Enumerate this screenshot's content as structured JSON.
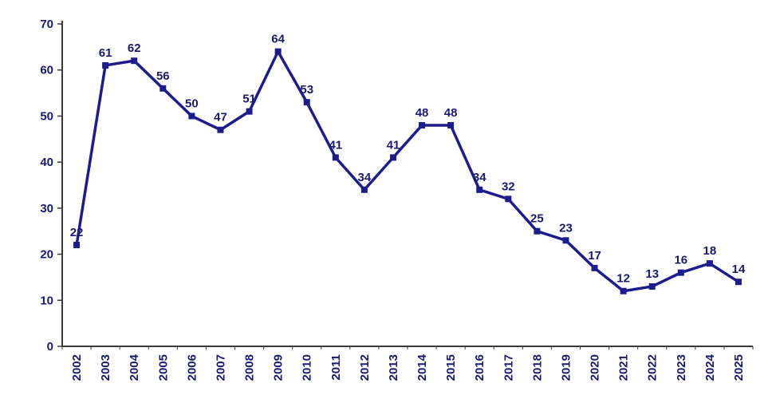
{
  "chart_data": {
    "type": "line",
    "categories": [
      "2002",
      "2003",
      "2004",
      "2005",
      "2006",
      "2007",
      "2008",
      "2009",
      "2010",
      "2011",
      "2012",
      "2013",
      "2014",
      "2015",
      "2016",
      "2017",
      "2018",
      "2019",
      "2020",
      "2021",
      "2022",
      "2023",
      "2024",
      "2025"
    ],
    "values": [
      22,
      61,
      62,
      56,
      50,
      47,
      51,
      64,
      53,
      41,
      34,
      41,
      48,
      48,
      34,
      32,
      25,
      23,
      17,
      12,
      13,
      16,
      18,
      14
    ],
    "title": "",
    "xlabel": "",
    "ylabel": "",
    "ylim": [
      0,
      70
    ],
    "ytick_step": 10,
    "grid": false,
    "legend": "none",
    "marker": "square",
    "line_color": "#1c1c8e",
    "label_color": "#191970",
    "axis_color": "#3a3a3a"
  }
}
